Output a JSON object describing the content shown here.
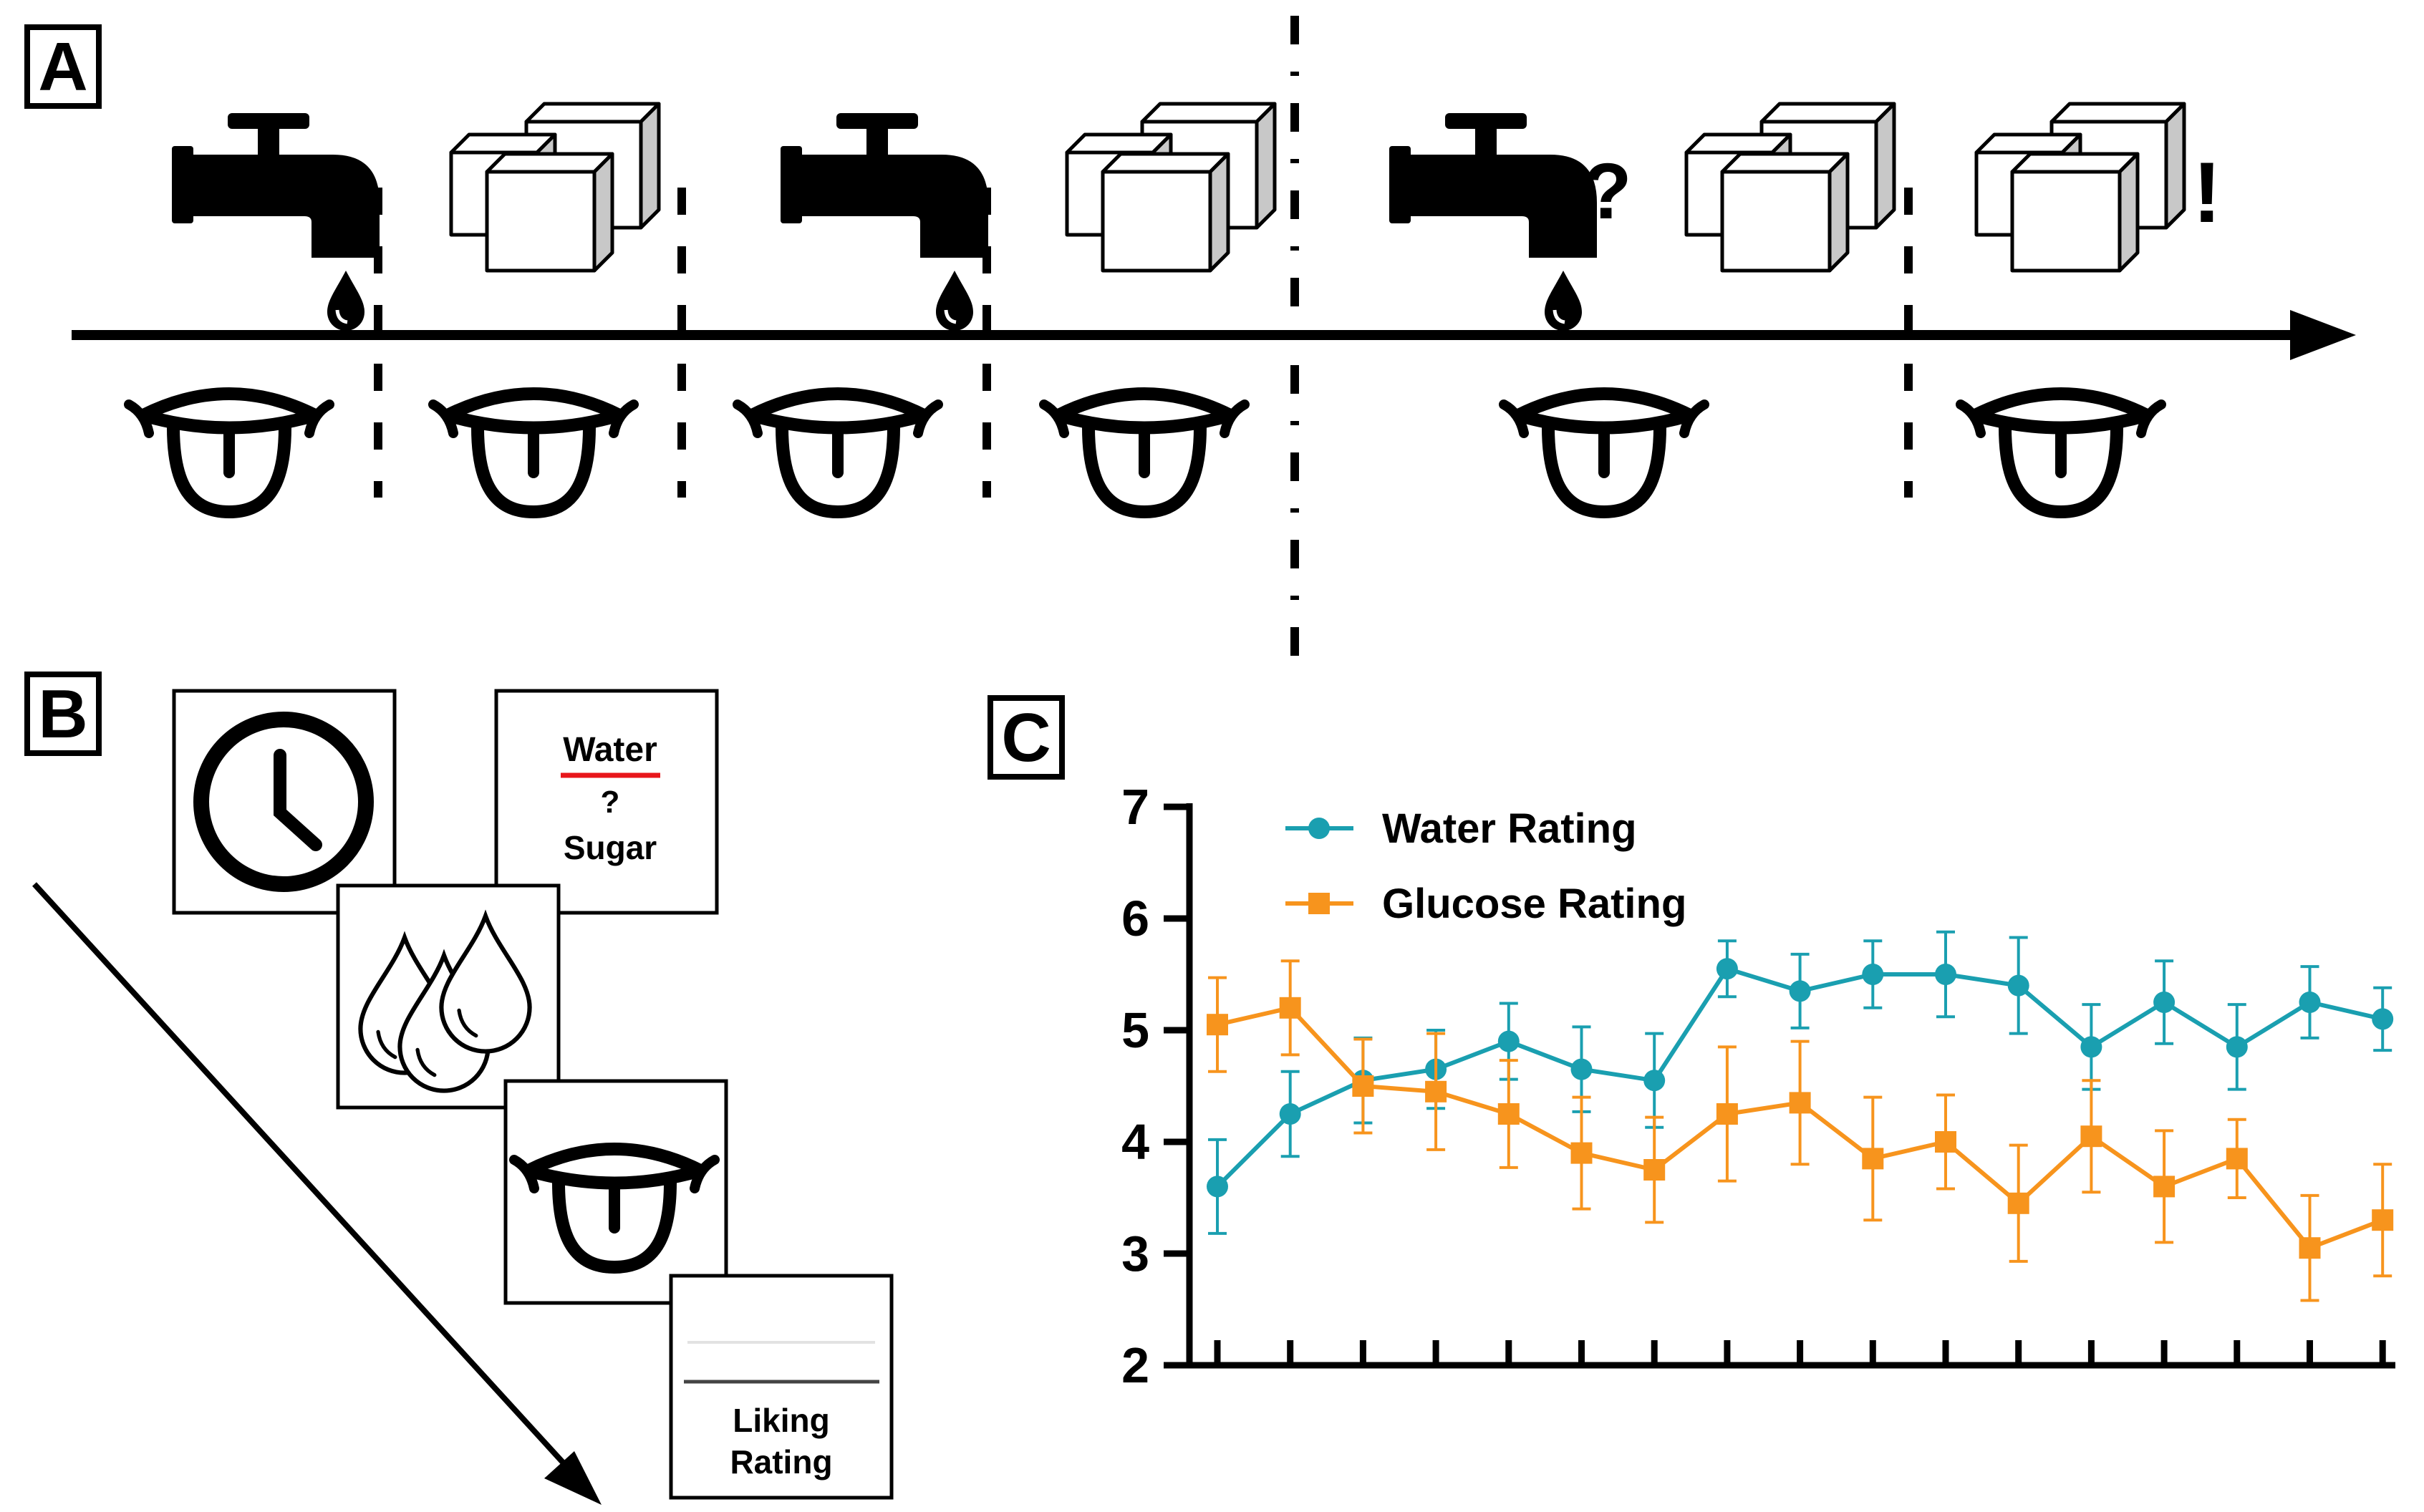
{
  "figure": {
    "panels": {
      "a": {
        "letter": "A"
      },
      "b": {
        "letter": "B"
      },
      "c": {
        "letter": "C"
      }
    },
    "timeline": {
      "question_mark": "?",
      "exclamation_mark": "!"
    },
    "task_screens": {
      "choice_top": "Water",
      "choice_mid": "?",
      "choice_bottom": "Sugar",
      "rating_line1": "Liking",
      "rating_line2": "Rating"
    },
    "colors": {
      "water": "#1a9fb0",
      "glucose": "#f7941d",
      "underline": "#e8161b",
      "ink": "#000000",
      "cube_shade": "#c8c8c8"
    }
  },
  "chart_data": {
    "type": "line",
    "title": "",
    "xlabel": "",
    "ylabel": "",
    "ylim": [
      2,
      7
    ],
    "yticks": [
      "2",
      "3",
      "4",
      "5",
      "6",
      "7"
    ],
    "x": [
      1,
      2,
      3,
      4,
      5,
      6,
      7,
      8,
      9,
      10,
      11,
      12,
      13,
      14,
      15,
      16,
      17
    ],
    "legend_position": "top-left",
    "series": [
      {
        "name": "Water Rating",
        "color": "#1a9fb0",
        "marker": "circle",
        "values": [
          3.6,
          4.25,
          4.55,
          4.65,
          4.9,
          4.65,
          4.55,
          5.55,
          5.35,
          5.5,
          5.5,
          5.4,
          4.85,
          5.25,
          4.85,
          5.25,
          5.1
        ],
        "errors": [
          0.42,
          0.38,
          0.38,
          0.35,
          0.34,
          0.38,
          0.42,
          0.25,
          0.33,
          0.3,
          0.38,
          0.43,
          0.38,
          0.37,
          0.38,
          0.32,
          0.28
        ]
      },
      {
        "name": "Glucose Rating",
        "color": "#f7941d",
        "marker": "square",
        "values": [
          5.05,
          5.2,
          4.5,
          4.45,
          4.25,
          3.9,
          3.75,
          4.25,
          4.35,
          3.85,
          4.0,
          3.45,
          4.05,
          3.6,
          3.85,
          3.05,
          3.3
        ],
        "errors": [
          0.42,
          0.42,
          0.42,
          0.52,
          0.48,
          0.5,
          0.47,
          0.6,
          0.55,
          0.55,
          0.42,
          0.52,
          0.5,
          0.5,
          0.35,
          0.47,
          0.5
        ]
      }
    ]
  }
}
